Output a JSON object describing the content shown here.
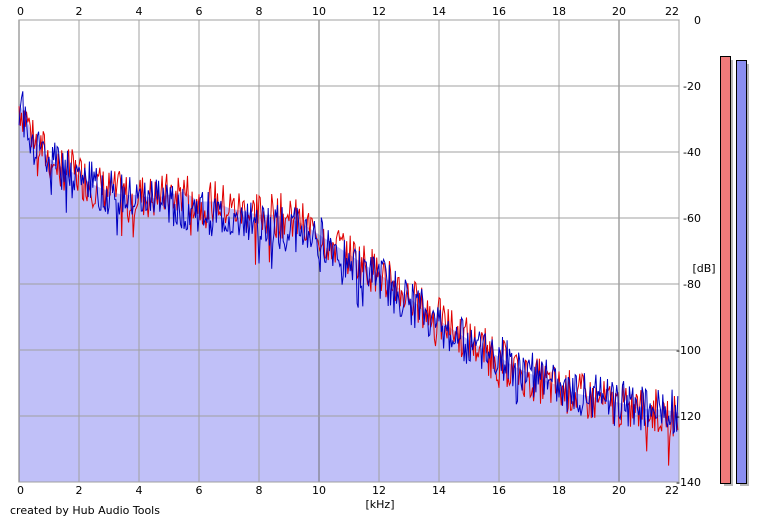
{
  "chart_data": {
    "type": "line",
    "title": "",
    "x_unit": "[kHz]",
    "y_unit": "[dB]",
    "xlim": [
      0,
      22
    ],
    "ylim": [
      -140,
      0
    ],
    "x_ticks": [
      "0",
      "2",
      "4",
      "6",
      "8",
      "10",
      "12",
      "14",
      "16",
      "18",
      "20",
      "22"
    ],
    "y_ticks": [
      "0",
      "-20",
      "-40",
      "-60",
      "-80",
      "-100",
      "-120",
      "-140"
    ],
    "grid": true,
    "series": [
      {
        "color": "#e00000",
        "x": [
          0,
          0.25,
          0.5,
          1,
          1.5,
          2,
          2.5,
          3,
          3.5,
          4,
          4.5,
          5,
          5.5,
          6,
          6.5,
          7,
          7.5,
          8,
          8.5,
          9,
          9.5,
          10,
          10.5,
          11,
          11.5,
          12,
          12.5,
          13,
          13.5,
          14,
          14.5,
          15,
          15.5,
          16,
          16.5,
          17,
          17.5,
          18,
          18.5,
          19,
          19.5,
          20,
          20.5,
          21,
          21.5,
          22
        ],
        "values": [
          -26,
          -30,
          -36,
          -42,
          -45,
          -47,
          -50,
          -52,
          -53,
          -53,
          -54,
          -53,
          -52,
          -55,
          -55,
          -57,
          -58,
          -59,
          -59,
          -60,
          -62,
          -65,
          -68,
          -71,
          -74,
          -77,
          -80,
          -84,
          -88,
          -91,
          -94,
          -97,
          -100,
          -103,
          -106,
          -108,
          -110,
          -112,
          -113,
          -115,
          -116,
          -117,
          -118,
          -118,
          -119,
          -120
        ]
      },
      {
        "color": "#0000c0",
        "x": [
          0,
          0.25,
          0.5,
          1,
          1.5,
          2,
          2.5,
          3,
          3.5,
          4,
          4.5,
          5,
          5.5,
          6,
          6.5,
          7,
          7.5,
          8,
          8.5,
          9,
          9.5,
          10,
          10.5,
          11,
          11.5,
          12,
          12.5,
          13,
          13.5,
          14,
          14.5,
          15,
          15.5,
          16,
          16.5,
          17,
          17.5,
          18,
          18.5,
          19,
          19.5,
          20,
          20.5,
          21,
          21.5,
          22
        ],
        "values": [
          -25,
          -31,
          -37,
          -43,
          -46,
          -48,
          -50,
          -52,
          -54,
          -55,
          -55,
          -56,
          -57,
          -58,
          -59,
          -60,
          -61,
          -62,
          -62,
          -63,
          -64,
          -66,
          -69,
          -72,
          -75,
          -78,
          -82,
          -86,
          -89,
          -92,
          -95,
          -98,
          -100,
          -102,
          -105,
          -107,
          -109,
          -111,
          -113,
          -114,
          -115,
          -116,
          -117,
          -118,
          -118,
          -119
        ]
      }
    ],
    "fill_color": "#c0c0f8",
    "meters": {
      "left_level_db": -11,
      "right_level_db": -12,
      "left_color": "#f07a7a",
      "right_color": "#8a8ef0"
    }
  },
  "footer": {
    "credit": "created by Hub Audio Tools"
  }
}
